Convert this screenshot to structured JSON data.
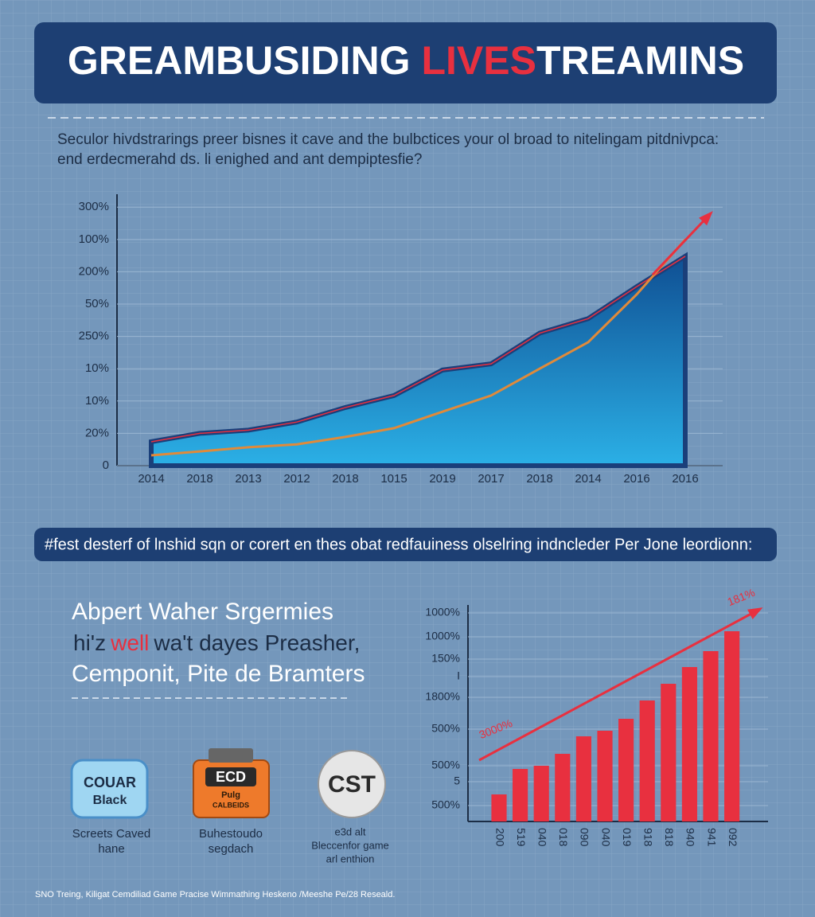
{
  "header": {
    "title": [
      "GREAMBUSIDING",
      "LIVES",
      "TREAMINS"
    ]
  },
  "intro": [
    "Seculor hivdstrarings preer bisnes it cave and the bulbctices your ol broad to nitelingam pitdnivpca:",
    "end erdecmerahd ds. li enighed and ant dempiptesfie?"
  ],
  "banner": "#fest desterf of lnshid sqn or corert en thes obat redfauiness olselring indncleder Per Jone leordionn:",
  "feature": {
    "lines": [
      "Abpert Waher Srgermies",
      "Cemponit, Pite de Bramters"
    ],
    "line2": [
      "hi'z",
      "well",
      "wa't dayes Preasher,"
    ]
  },
  "badges": [
    {
      "label": [
        "COUAR",
        "Black"
      ],
      "caption": [
        "Screets Caved",
        "hane"
      ]
    },
    {
      "label": [
        "ECD",
        "Pulg",
        "CALBEIDS"
      ],
      "caption": [
        "Buhestoudo",
        "segdach"
      ]
    },
    {
      "label": [
        "CST"
      ],
      "caption": [
        "e3d alt",
        "Bleccenfor game",
        "arl enthion"
      ]
    }
  ],
  "footer": "SNO Treing, Kiligat Cemdiliad Game Pracise Wimmathing Heskeno /Meeshe Pe/28 Reseald.",
  "chart_data": [
    {
      "type": "area",
      "categories": [
        "2014",
        "2018",
        "2013",
        "2012",
        "2018",
        "1015",
        "2019",
        "2017",
        "2018",
        "2014",
        "2016",
        "2016"
      ],
      "series": [
        {
          "type": "area",
          "color": "#1a3f7a",
          "values": [
            0.74,
            1.0,
            1.1,
            1.35,
            1.8,
            2.17,
            2.96,
            3.15,
            4.1,
            4.55,
            5.54,
            6.48
          ]
        },
        {
          "type": "line",
          "color": "#e08a3a",
          "values": [
            0.32,
            0.44,
            0.57,
            0.66,
            0.89,
            1.16,
            1.67,
            2.17,
            3.0,
            3.82,
            5.3,
            7.0
          ]
        }
      ],
      "ylim": [
        0,
        8.4
      ],
      "yticks": [
        0,
        {
          "value": 1,
          "label": "20%"
        },
        {
          "value": 2,
          "label": "10%"
        },
        {
          "value": 3,
          "label": "10%"
        },
        {
          "value": 4,
          "label": "250%"
        },
        {
          "value": 5,
          "label": "50%"
        },
        {
          "value": 6,
          "label": "200%"
        },
        {
          "value": 7,
          "label": "100%"
        },
        {
          "value": 8,
          "label": "300%"
        }
      ],
      "grid": true
    },
    {
      "type": "bar",
      "categories": [
        "200",
        "519",
        "040",
        "018",
        "090",
        "040",
        "019",
        "918",
        "818",
        "940",
        "941",
        "092"
      ],
      "values": [
        3.4,
        6.6,
        7.0,
        8.5,
        10.7,
        11.4,
        12.9,
        15.2,
        17.3,
        19.4,
        21.4,
        23.9
      ],
      "color": "#e8303f",
      "ylim": [
        0,
        27
      ],
      "yticks": [
        {
          "value": 2,
          "label": "500%"
        },
        5,
        {
          "value": 7,
          "label": "500%"
        },
        {
          "value": 11.6,
          "label": "500%"
        },
        {
          "value": 15.6,
          "label": "1800%"
        },
        {
          "value": 18.2,
          "label": "I"
        },
        {
          "value": 20.4,
          "label": "150%"
        },
        {
          "value": 23.2,
          "label": "1000%"
        },
        {
          "value": 26.2,
          "label": "1000%"
        }
      ],
      "annotations": [
        "3000%",
        "181%"
      ],
      "grid": true
    }
  ]
}
